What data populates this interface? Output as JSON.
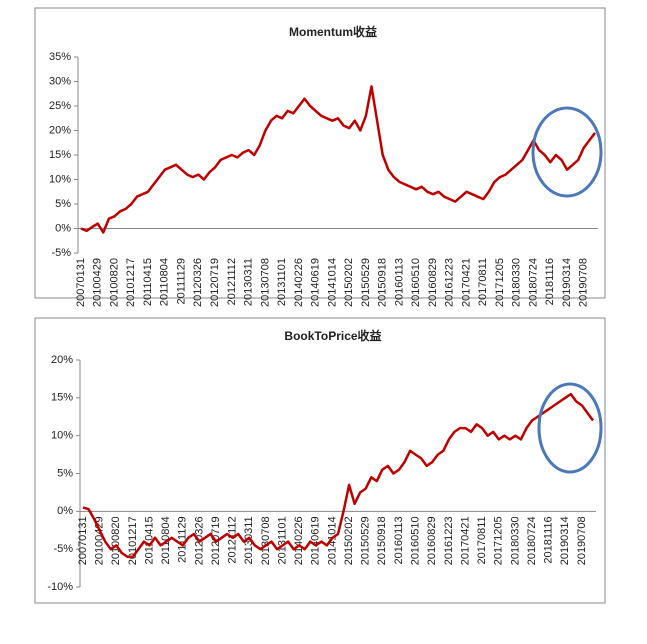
{
  "chart_data": [
    {
      "type": "line",
      "title": "Momentum收益",
      "color": "#c00000",
      "categories": [
        "20070131",
        null,
        null,
        "20100429",
        null,
        null,
        "20100820",
        null,
        null,
        "20101217",
        null,
        null,
        "20110415",
        null,
        null,
        "20110804",
        null,
        null,
        "20111129",
        null,
        null,
        "20120326",
        null,
        null,
        "20120719",
        null,
        null,
        "20121112",
        null,
        null,
        "20130311",
        null,
        null,
        "20130708",
        null,
        null,
        "20131101",
        null,
        null,
        "20140226",
        null,
        null,
        "20140619",
        null,
        null,
        "20141014",
        null,
        null,
        "20150202",
        null,
        null,
        "20150529",
        null,
        null,
        "20150918",
        null,
        null,
        "20160113",
        null,
        null,
        "20160510",
        null,
        null,
        "20160829",
        null,
        null,
        "20161223",
        null,
        null,
        "20170421",
        null,
        null,
        "20170811",
        null,
        null,
        "20171205",
        null,
        null,
        "20180330",
        null,
        null,
        "20180724",
        null,
        null,
        "20181116",
        null,
        null,
        "20190314",
        null,
        null,
        "20190708",
        null,
        null
      ],
      "values": [
        0,
        -0.5,
        0.3,
        1,
        -0.8,
        2,
        2.5,
        3.5,
        4,
        5,
        6.5,
        7,
        7.5,
        9,
        10.5,
        12,
        12.5,
        13,
        12,
        11,
        10.5,
        11,
        10,
        11.5,
        12.5,
        14,
        14.5,
        15,
        14.5,
        15.5,
        16,
        15,
        17,
        20,
        22,
        23,
        22.5,
        24,
        23.5,
        25,
        26.5,
        25,
        24,
        23,
        22.5,
        22,
        22.5,
        21,
        20.5,
        22,
        20,
        23,
        29,
        22,
        15,
        12,
        10.5,
        9.5,
        9,
        8.5,
        8,
        8.5,
        7.5,
        7,
        7.5,
        6.5,
        6,
        5.5,
        6.5,
        7.5,
        7,
        6.5,
        6,
        7.5,
        9.5,
        10.5,
        11,
        12,
        13,
        14,
        16,
        18,
        16,
        15,
        13.5,
        15,
        14,
        12,
        13,
        14,
        16.5,
        18,
        19.5
      ],
      "ylim": [
        -5,
        35
      ],
      "yticks": [
        {
          "value": -5,
          "label": "-5%"
        },
        {
          "value": 0,
          "label": "0%"
        },
        {
          "value": 5,
          "label": "5%"
        },
        {
          "value": 10,
          "label": "10%"
        },
        {
          "value": 15,
          "label": "15%"
        },
        {
          "value": 20,
          "label": "20%"
        },
        {
          "value": 25,
          "label": "25%"
        },
        {
          "value": 30,
          "label": "30%"
        },
        {
          "value": 35,
          "label": "35%"
        }
      ]
    },
    {
      "type": "line",
      "title": "BookToPrice收益",
      "color": "#c00000",
      "categories": [
        "20070131",
        null,
        null,
        "20100429",
        null,
        null,
        "20100820",
        null,
        null,
        "20101217",
        null,
        null,
        "20110415",
        null,
        null,
        "20110804",
        null,
        null,
        "20111129",
        null,
        null,
        "20120326",
        null,
        null,
        "20120719",
        null,
        null,
        "20121112",
        null,
        null,
        "20130311",
        null,
        null,
        "20130708",
        null,
        null,
        "20131101",
        null,
        null,
        "20140226",
        null,
        null,
        "20140619",
        null,
        null,
        "20141014",
        null,
        null,
        "20150202",
        null,
        null,
        "20150529",
        null,
        null,
        "20150918",
        null,
        null,
        "20160113",
        null,
        null,
        "20160510",
        null,
        null,
        "20160829",
        null,
        null,
        "20161223",
        null,
        null,
        "20170421",
        null,
        null,
        "20170811",
        null,
        null,
        "20171205",
        null,
        null,
        "20180330",
        null,
        null,
        "20180724",
        null,
        null,
        "20181116",
        null,
        null,
        "20190314",
        null,
        null,
        "20190708",
        null,
        null
      ],
      "values": [
        0.5,
        0.3,
        -1,
        -2.5,
        -4,
        -5,
        -4.5,
        -5.5,
        -6,
        -6,
        -5,
        -4,
        -4.5,
        -3.5,
        -4.5,
        -4,
        -3.5,
        -4,
        -4.5,
        -3.5,
        -3,
        -4,
        -3.5,
        -3,
        -4,
        -3.5,
        -3,
        -3.5,
        -3,
        -4,
        -3.5,
        -4.5,
        -5,
        -4.5,
        -4,
        -5,
        -4.5,
        -4,
        -5,
        -4.5,
        -5,
        -4,
        -4.5,
        -4,
        -4.5,
        -3.5,
        -3,
        0,
        3.5,
        1,
        2.5,
        3,
        4.5,
        4,
        5.5,
        6,
        5,
        5.5,
        6.5,
        8,
        7.5,
        7,
        6,
        6.5,
        7.5,
        8,
        9.5,
        10.5,
        11,
        11,
        10.5,
        11.5,
        11,
        10,
        10.5,
        9.5,
        10,
        9.5,
        10,
        9.5,
        11,
        12,
        12.5,
        13,
        13.5,
        14,
        14.5,
        15,
        15.5,
        14.5,
        14,
        13,
        12
      ],
      "ylim": [
        -10,
        20
      ],
      "yticks": [
        {
          "value": -10,
          "label": "-10%"
        },
        {
          "value": -5,
          "label": "-5%"
        },
        {
          "value": 0,
          "label": "0%"
        },
        {
          "value": 5,
          "label": "5%"
        },
        {
          "value": 10,
          "label": "10%"
        },
        {
          "value": 15,
          "label": "15%"
        },
        {
          "value": 20,
          "label": "20%"
        }
      ]
    }
  ]
}
